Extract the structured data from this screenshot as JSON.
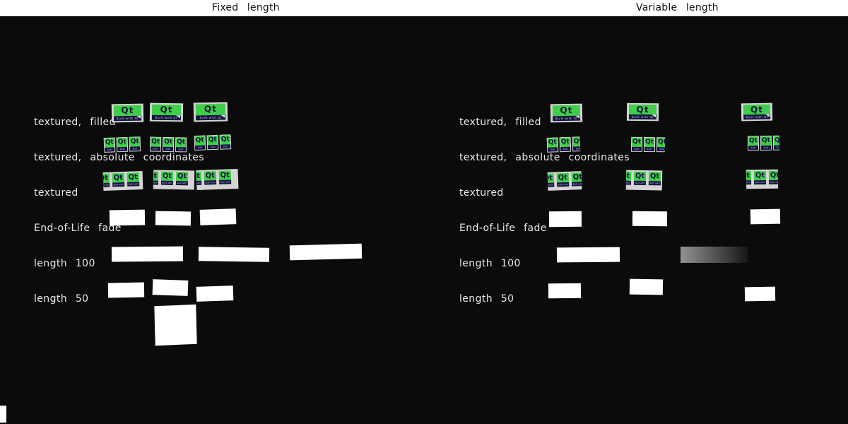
{
  "header": {
    "fixed_label": "Fixed length",
    "variable_label": "Variable length"
  },
  "rows": [
    {
      "label": "textured, filled"
    },
    {
      "label": "textured, absolute coordinates"
    },
    {
      "label": "textured"
    },
    {
      "label": "End-of-Life fade"
    },
    {
      "label": "length 100"
    },
    {
      "label": "length 50"
    }
  ],
  "logo": {
    "text": "Qt",
    "subtext": "Built with Qt"
  },
  "colors": {
    "background": "#0b0b0b",
    "header_bg": "#ffffff",
    "header_text": "#111111",
    "label_text": "#e9e9e9",
    "quad_white": "#ffffff",
    "qt_green": "#3fce49",
    "qt_navy": "#14143e",
    "frame_gray": "#d4d4d4",
    "gradient_start": "#929292",
    "gradient_end": "#161616"
  }
}
